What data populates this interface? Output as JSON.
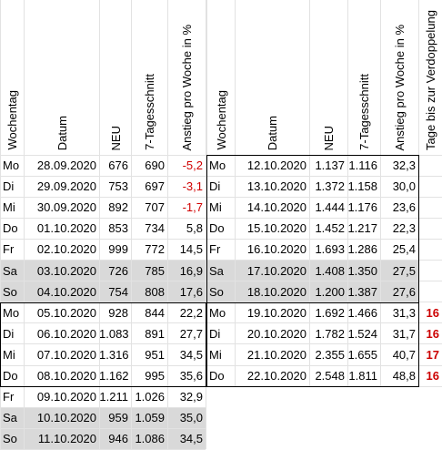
{
  "headers": {
    "left": {
      "weekday": "Wochentag",
      "date": "Datum",
      "new": "NEU",
      "avg7": "7-Tagesschnitt",
      "rise": "Anstieg pro Woche in %"
    },
    "right": {
      "weekday": "Wochentag",
      "date": "Datum",
      "new": "NEU",
      "avg7": "7-Tagesschnitt",
      "rise": "Anstieg pro Woche in %",
      "doubling": "Tage bis zur Verdoppelung"
    }
  },
  "left_rows": [
    {
      "day": "Mo",
      "date": "28.09.2020",
      "new": "676",
      "avg": "690",
      "rise": "-5,2",
      "neg": true,
      "weekend": false
    },
    {
      "day": "Di",
      "date": "29.09.2020",
      "new": "753",
      "avg": "697",
      "rise": "-3,1",
      "neg": true,
      "weekend": false
    },
    {
      "day": "Mi",
      "date": "30.09.2020",
      "new": "892",
      "avg": "707",
      "rise": "-1,7",
      "neg": true,
      "weekend": false
    },
    {
      "day": "Do",
      "date": "01.10.2020",
      "new": "853",
      "avg": "734",
      "rise": "5,8",
      "neg": false,
      "weekend": false
    },
    {
      "day": "Fr",
      "date": "02.10.2020",
      "new": "999",
      "avg": "772",
      "rise": "14,5",
      "neg": false,
      "weekend": false
    },
    {
      "day": "Sa",
      "date": "03.10.2020",
      "new": "726",
      "avg": "785",
      "rise": "16,9",
      "neg": false,
      "weekend": true
    },
    {
      "day": "So",
      "date": "04.10.2020",
      "new": "754",
      "avg": "808",
      "rise": "17,6",
      "neg": false,
      "weekend": true
    },
    {
      "day": "Mo",
      "date": "05.10.2020",
      "new": "928",
      "avg": "844",
      "rise": "22,2",
      "neg": false,
      "weekend": false
    },
    {
      "day": "Di",
      "date": "06.10.2020",
      "new": "1.083",
      "avg": "891",
      "rise": "27,7",
      "neg": false,
      "weekend": false
    },
    {
      "day": "Mi",
      "date": "07.10.2020",
      "new": "1.316",
      "avg": "951",
      "rise": "34,5",
      "neg": false,
      "weekend": false
    },
    {
      "day": "Do",
      "date": "08.10.2020",
      "new": "1.162",
      "avg": "995",
      "rise": "35,6",
      "neg": false,
      "weekend": false
    },
    {
      "day": "Fr",
      "date": "09.10.2020",
      "new": "1.211",
      "avg": "1.026",
      "rise": "32,9",
      "neg": false,
      "weekend": false
    },
    {
      "day": "Sa",
      "date": "10.10.2020",
      "new": "959",
      "avg": "1.059",
      "rise": "35,0",
      "neg": false,
      "weekend": true
    },
    {
      "day": "So",
      "date": "11.10.2020",
      "new": "946",
      "avg": "1.086",
      "rise": "34,5",
      "neg": false,
      "weekend": true
    }
  ],
  "right_rows": [
    {
      "day": "Mo",
      "date": "12.10.2020",
      "new": "1.137",
      "avg": "1.116",
      "rise": "32,3",
      "dbl": "",
      "weekend": false
    },
    {
      "day": "Di",
      "date": "13.10.2020",
      "new": "1.372",
      "avg": "1.158",
      "rise": "30,0",
      "dbl": "",
      "weekend": false
    },
    {
      "day": "Mi",
      "date": "14.10.2020",
      "new": "1.444",
      "avg": "1.176",
      "rise": "23,6",
      "dbl": "",
      "weekend": false
    },
    {
      "day": "Do",
      "date": "15.10.2020",
      "new": "1.452",
      "avg": "1.217",
      "rise": "22,3",
      "dbl": "",
      "weekend": false
    },
    {
      "day": "Fr",
      "date": "16.10.2020",
      "new": "1.693",
      "avg": "1.286",
      "rise": "25,4",
      "dbl": "",
      "weekend": false
    },
    {
      "day": "Sa",
      "date": "17.10.2020",
      "new": "1.408",
      "avg": "1.350",
      "rise": "27,5",
      "dbl": "",
      "weekend": true
    },
    {
      "day": "So",
      "date": "18.10.2020",
      "new": "1.200",
      "avg": "1.387",
      "rise": "27,6",
      "dbl": "",
      "weekend": true
    },
    {
      "day": "Mo",
      "date": "19.10.2020",
      "new": "1.692",
      "avg": "1.466",
      "rise": "31,3",
      "dbl": "16",
      "weekend": false
    },
    {
      "day": "Di",
      "date": "20.10.2020",
      "new": "1.782",
      "avg": "1.524",
      "rise": "31,7",
      "dbl": "16",
      "weekend": false
    },
    {
      "day": "Mi",
      "date": "21.10.2020",
      "new": "2.355",
      "avg": "1.655",
      "rise": "40,7",
      "dbl": "17",
      "weekend": false
    },
    {
      "day": "Do",
      "date": "22.10.2020",
      "new": "2.548",
      "avg": "1.811",
      "rise": "48,8",
      "dbl": "16",
      "weekend": false
    }
  ],
  "colors": {
    "negative": "#d00000",
    "doubling": "#cc0000",
    "weekend_fill": "#d9d9d9",
    "border": "#000000"
  }
}
